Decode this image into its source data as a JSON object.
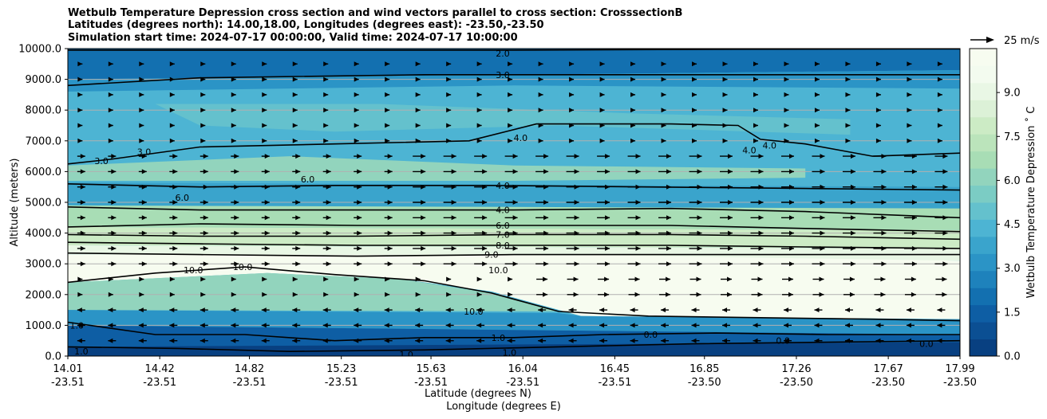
{
  "chart_data": {
    "type": "contour",
    "title_lines": [
      "Wetbulb Temperature Depression cross section and wind vectors parallel to cross section: CrosssectionB",
      "Latitudes (degrees north): 14.00,18.00, Longitudes (degrees east): -23.50,-23.50",
      "Simulation start time: 2024-07-17 00:00:00, Valid time: 2024-07-17 10:00:00"
    ],
    "ylabel": "Altitude (meters)",
    "xlabel_lines": [
      "Latitude (degrees N)",
      "Longitude (degrees E)"
    ],
    "ylim": [
      0,
      10000
    ],
    "y_ticks": [
      "0.0",
      "1000.0",
      "2000.0",
      "3000.0",
      "4000.0",
      "5000.0",
      "6000.0",
      "7000.0",
      "8000.0",
      "9000.0",
      "10000.0"
    ],
    "x_ticks": [
      {
        "lat": "14.01",
        "lon": "-23.51"
      },
      {
        "lat": "14.42",
        "lon": "-23.51"
      },
      {
        "lat": "14.82",
        "lon": "-23.51"
      },
      {
        "lat": "15.23",
        "lon": "-23.51"
      },
      {
        "lat": "15.63",
        "lon": "-23.51"
      },
      {
        "lat": "16.04",
        "lon": "-23.51"
      },
      {
        "lat": "16.45",
        "lon": "-23.51"
      },
      {
        "lat": "16.85",
        "lon": "-23.50"
      },
      {
        "lat": "17.26",
        "lon": "-23.50"
      },
      {
        "lat": "17.67",
        "lon": "-23.50"
      },
      {
        "lat": "17.99",
        "lon": "-23.50"
      }
    ],
    "colorbar": {
      "label": "Wetbulb Temperature Depression ˚ C",
      "range": [
        0,
        10.5
      ],
      "ticks": [
        "0.0",
        "1.5",
        "3.0",
        "4.5",
        "6.0",
        "7.5",
        "9.0"
      ],
      "colors": [
        "#084081",
        "#0b4f93",
        "#0e5ea4",
        "#1370b0",
        "#1e82bc",
        "#2b94c6",
        "#3aa4cc",
        "#4db4d3",
        "#64c1cd",
        "#7bccc4",
        "#92d4bd",
        "#a8ddb5",
        "#bbe4bb",
        "#ccebc5",
        "#dcf1d7",
        "#e9f7e5",
        "#f3fbef",
        "#f7fcf0"
      ]
    },
    "wind_key": {
      "label": "25 m/s",
      "speed": 25
    },
    "contour_levels": [
      "0.0",
      "1.0",
      "2.0",
      "3.0",
      "4.0",
      "6.0",
      "7.0",
      "8.0",
      "9.0",
      "10.0"
    ],
    "contour_labels": [
      {
        "text": "2.0",
        "lat": 15.95,
        "alt": 9850
      },
      {
        "text": "3.0",
        "lat": 15.95,
        "alt": 9150
      },
      {
        "text": "3.0",
        "lat": 14.16,
        "alt": 6350
      },
      {
        "text": "3.0",
        "lat": 14.35,
        "alt": 6650
      },
      {
        "text": "4.0",
        "lat": 16.03,
        "alt": 7100
      },
      {
        "text": "4.0",
        "lat": 17.05,
        "alt": 6700
      },
      {
        "text": "4.0",
        "lat": 17.14,
        "alt": 6850
      },
      {
        "text": "6.0",
        "lat": 15.08,
        "alt": 5750
      },
      {
        "text": "6.0",
        "lat": 14.52,
        "alt": 5150
      },
      {
        "text": "4.0",
        "lat": 15.95,
        "alt": 5550
      },
      {
        "text": "4.0",
        "lat": 15.95,
        "alt": 4750
      },
      {
        "text": "6.0",
        "lat": 15.95,
        "alt": 4250
      },
      {
        "text": "7.0",
        "lat": 15.95,
        "alt": 3950
      },
      {
        "text": "8.0",
        "lat": 15.95,
        "alt": 3600
      },
      {
        "text": "9.0",
        "lat": 15.9,
        "alt": 3300
      },
      {
        "text": "10.0",
        "lat": 15.93,
        "alt": 2800
      },
      {
        "text": "10.0",
        "lat": 14.57,
        "alt": 2800
      },
      {
        "text": "10.0",
        "lat": 14.79,
        "alt": 2900
      },
      {
        "text": "10.0",
        "lat": 15.82,
        "alt": 1450
      },
      {
        "text": "1.0",
        "lat": 14.05,
        "alt": 1000
      },
      {
        "text": "1.0",
        "lat": 15.93,
        "alt": 600
      },
      {
        "text": "1.0",
        "lat": 14.07,
        "alt": 150
      },
      {
        "text": "1.0",
        "lat": 15.52,
        "alt": 50
      },
      {
        "text": "1.0",
        "lat": 15.98,
        "alt": 120
      },
      {
        "text": "0.0",
        "lat": 16.61,
        "alt": 700
      },
      {
        "text": "0.0",
        "lat": 17.2,
        "alt": 500
      },
      {
        "text": "0.0",
        "lat": 17.84,
        "alt": 400
      }
    ],
    "key_isolines": [
      {
        "level": "2.0",
        "points": [
          [
            14.01,
            9950
          ],
          [
            15.0,
            9950
          ],
          [
            16.0,
            9950
          ],
          [
            17.0,
            9980
          ],
          [
            17.99,
            9990
          ]
        ]
      },
      {
        "level": "3.0",
        "points": [
          [
            14.01,
            8800
          ],
          [
            14.6,
            9050
          ],
          [
            15.6,
            9150
          ],
          [
            16.5,
            9150
          ],
          [
            17.2,
            9150
          ],
          [
            17.99,
            9150
          ]
        ]
      },
      {
        "level": "4.0",
        "points": [
          [
            14.01,
            6250
          ],
          [
            14.2,
            6400
          ],
          [
            14.6,
            6800
          ],
          [
            15.2,
            6900
          ],
          [
            15.8,
            7000
          ],
          [
            16.1,
            7550
          ],
          [
            16.7,
            7550
          ],
          [
            17.0,
            7500
          ],
          [
            17.1,
            7050
          ],
          [
            17.3,
            6900
          ],
          [
            17.6,
            6500
          ],
          [
            17.99,
            6600
          ]
        ]
      },
      {
        "level": "4.0",
        "points": [
          [
            14.01,
            5600
          ],
          [
            14.6,
            5500
          ],
          [
            15.2,
            5550
          ],
          [
            15.9,
            5550
          ],
          [
            16.6,
            5500
          ],
          [
            17.3,
            5450
          ],
          [
            17.99,
            5400
          ]
        ]
      },
      {
        "level": "4.0",
        "points": [
          [
            14.01,
            4850
          ],
          [
            14.6,
            4750
          ],
          [
            15.3,
            4750
          ],
          [
            16.0,
            4750
          ],
          [
            16.7,
            4800
          ],
          [
            17.3,
            4700
          ],
          [
            17.99,
            4500
          ]
        ]
      },
      {
        "level": "6.0",
        "points": [
          [
            14.01,
            4200
          ],
          [
            14.6,
            4300
          ],
          [
            15.3,
            4250
          ],
          [
            16.0,
            4250
          ],
          [
            16.7,
            4250
          ],
          [
            17.3,
            4150
          ],
          [
            17.99,
            4050
          ]
        ]
      },
      {
        "level": "7.0",
        "points": [
          [
            14.01,
            3950
          ],
          [
            14.6,
            3900
          ],
          [
            15.3,
            3900
          ],
          [
            16.0,
            3950
          ],
          [
            16.7,
            3950
          ],
          [
            17.3,
            3900
          ],
          [
            17.99,
            3800
          ]
        ]
      },
      {
        "level": "8.0",
        "points": [
          [
            14.01,
            3700
          ],
          [
            14.6,
            3650
          ],
          [
            15.3,
            3600
          ],
          [
            16.0,
            3600
          ],
          [
            16.7,
            3600
          ],
          [
            17.3,
            3550
          ],
          [
            17.99,
            3500
          ]
        ]
      },
      {
        "level": "9.0",
        "points": [
          [
            14.01,
            3350
          ],
          [
            14.6,
            3300
          ],
          [
            15.3,
            3250
          ],
          [
            16.0,
            3300
          ],
          [
            16.7,
            3300
          ],
          [
            17.3,
            3300
          ],
          [
            17.99,
            3300
          ]
        ]
      },
      {
        "level": "10.0",
        "points": [
          [
            14.01,
            2400
          ],
          [
            14.4,
            2700
          ],
          [
            14.8,
            2900
          ],
          [
            15.2,
            2650
          ],
          [
            15.6,
            2450
          ],
          [
            15.9,
            2050
          ],
          [
            16.2,
            1450
          ],
          [
            16.6,
            1300
          ],
          [
            17.1,
            1250
          ],
          [
            17.6,
            1200
          ],
          [
            17.99,
            1150
          ]
        ]
      },
      {
        "level": "1.0",
        "points": [
          [
            14.01,
            1100
          ],
          [
            14.4,
            700
          ],
          [
            14.8,
            700
          ],
          [
            15.2,
            500
          ],
          [
            15.6,
            600
          ],
          [
            16.0,
            600
          ],
          [
            16.4,
            700
          ],
          [
            16.9,
            750
          ],
          [
            17.4,
            700
          ],
          [
            17.99,
            700
          ]
        ]
      },
      {
        "level": "0.0",
        "points": [
          [
            14.01,
            300
          ],
          [
            14.5,
            250
          ],
          [
            15.0,
            150
          ],
          [
            15.6,
            200
          ],
          [
            16.2,
            300
          ],
          [
            16.8,
            400
          ],
          [
            17.4,
            450
          ],
          [
            17.99,
            500
          ]
        ]
      }
    ],
    "wind_field_note": ""
  }
}
